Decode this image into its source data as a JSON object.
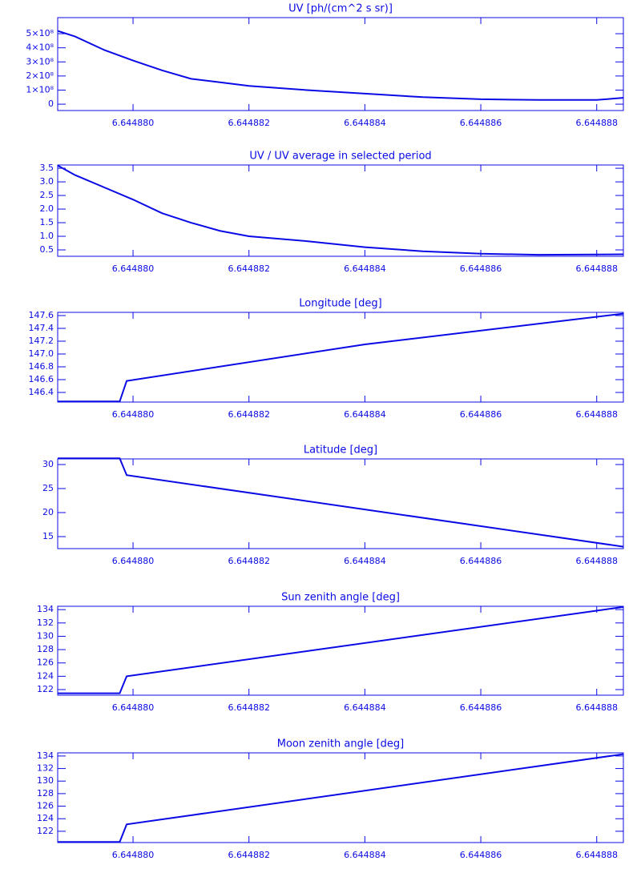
{
  "chart_data": [
    {
      "type": "line",
      "title": "UV [ph/(cm^2 s sr)]",
      "color": "#0a0ae6",
      "x": [
        6.6448787,
        6.644879,
        6.6448795,
        6.64488,
        6.6448805,
        6.644881,
        6.6448815,
        6.644882,
        6.644883,
        6.644884,
        6.644885,
        6.644886,
        6.644887,
        6.644888,
        6.64488846
      ],
      "values": [
        520000000,
        480000000,
        385000000,
        310000000,
        240000000,
        180000000,
        155000000,
        130000000,
        100000000,
        75000000,
        50000000,
        35000000,
        30000000,
        30000000,
        45000000
      ],
      "xlim": [
        6.6448787,
        6.64488846
      ],
      "xticks": [
        {
          "value": 6.64488,
          "label": "6.644880"
        },
        {
          "value": 6.644882,
          "label": "6.644882"
        },
        {
          "value": 6.644884,
          "label": "6.644884"
        },
        {
          "value": 6.644886,
          "label": "6.644886"
        },
        {
          "value": 6.644888,
          "label": "6.644888"
        }
      ],
      "ylim": [
        -45000000,
        614000000
      ],
      "yticks": [
        0,
        {
          "value": 100000000,
          "label": "1×10⁸"
        },
        {
          "value": 200000000,
          "label": "2×10⁸"
        },
        {
          "value": 300000000,
          "label": "3×10⁸"
        },
        {
          "value": 400000000,
          "label": "4×10⁸"
        },
        {
          "value": 500000000,
          "label": "5×10⁸"
        }
      ]
    },
    {
      "type": "line",
      "title": "UV / UV average in selected period",
      "color": "#0a0ae6",
      "x": [
        6.6448787,
        6.644879,
        6.6448795,
        6.64488,
        6.6448805,
        6.644881,
        6.6448815,
        6.644882,
        6.644883,
        6.644884,
        6.644885,
        6.644886,
        6.644887,
        6.644888,
        6.64488846
      ],
      "values": [
        3.6,
        3.25,
        2.8,
        2.35,
        1.85,
        1.5,
        1.2,
        1.0,
        0.82,
        0.6,
        0.45,
        0.36,
        0.32,
        0.33,
        0.34
      ],
      "xlim": [
        6.6448787,
        6.64488846
      ],
      "xticks": [
        {
          "value": 6.64488,
          "label": "6.644880"
        },
        {
          "value": 6.644882,
          "label": "6.644882"
        },
        {
          "value": 6.644884,
          "label": "6.644884"
        },
        {
          "value": 6.644886,
          "label": "6.644886"
        },
        {
          "value": 6.644888,
          "label": "6.644888"
        }
      ],
      "ylim": [
        0.265,
        3.62
      ],
      "yticks": [
        0.5,
        {
          "value": 1,
          "label": "1.0"
        },
        1.5,
        {
          "value": 2,
          "label": "2.0"
        },
        2.5,
        {
          "value": 3,
          "label": "3.0"
        },
        3.5
      ]
    },
    {
      "type": "line",
      "title": "Longitude [deg]",
      "color": "#0a0ae6",
      "x": [
        6.6448787,
        6.64487977,
        6.64487989,
        6.644884,
        6.64488846
      ],
      "values": [
        146.26,
        146.26,
        146.58,
        147.15,
        147.63
      ],
      "xlim": [
        6.6448787,
        6.64488846
      ],
      "xticks": [
        {
          "value": 6.64488,
          "label": "6.644880"
        },
        {
          "value": 6.644882,
          "label": "6.644882"
        },
        {
          "value": 6.644884,
          "label": "6.644884"
        },
        {
          "value": 6.644886,
          "label": "6.644886"
        },
        {
          "value": 6.644888,
          "label": "6.644888"
        }
      ],
      "ylim": [
        146.25,
        147.65
      ],
      "yticks": [
        146.4,
        146.6,
        146.8,
        {
          "value": 147,
          "label": "147.0"
        },
        147.2,
        147.4,
        147.6
      ]
    },
    {
      "type": "line",
      "title": "Latitude [deg]",
      "color": "#0a0ae6",
      "x": [
        6.6448787,
        6.64487977,
        6.64487989,
        6.644884,
        6.64488846
      ],
      "values": [
        31.3,
        31.3,
        27.8,
        20.65,
        12.9
      ],
      "xlim": [
        6.6448787,
        6.64488846
      ],
      "xticks": [
        {
          "value": 6.64488,
          "label": "6.644880"
        },
        {
          "value": 6.644882,
          "label": "6.644882"
        },
        {
          "value": 6.644884,
          "label": "6.644884"
        },
        {
          "value": 6.644886,
          "label": "6.644886"
        },
        {
          "value": 6.644888,
          "label": "6.644888"
        }
      ],
      "ylim": [
        12.5,
        31.17
      ],
      "yticks": [
        15,
        20,
        25,
        30
      ]
    },
    {
      "type": "line",
      "title": "Sun zenith angle [deg]",
      "color": "#0a0ae6",
      "x": [
        6.6448787,
        6.64487977,
        6.64487989,
        6.64488846
      ],
      "values": [
        121.45,
        121.45,
        124.0,
        134.4
      ],
      "xlim": [
        6.6448787,
        6.64488846
      ],
      "xticks": [
        {
          "value": 6.64488,
          "label": "6.644880"
        },
        {
          "value": 6.644882,
          "label": "6.644882"
        },
        {
          "value": 6.644884,
          "label": "6.644884"
        },
        {
          "value": 6.644886,
          "label": "6.644886"
        },
        {
          "value": 6.644888,
          "label": "6.644888"
        }
      ],
      "ylim": [
        121.16,
        134.5
      ],
      "yticks": [
        122,
        124,
        126,
        128,
        130,
        132,
        134
      ]
    },
    {
      "type": "line",
      "title": "Moon zenith angle [deg]",
      "color": "#0a0ae6",
      "x": [
        6.6448787,
        6.64487977,
        6.64487989,
        6.64488846
      ],
      "values": [
        120.3,
        120.3,
        123.1,
        134.3
      ],
      "xlim": [
        6.6448787,
        6.64488846
      ],
      "xticks": [
        {
          "value": 6.64488,
          "label": "6.644880"
        },
        {
          "value": 6.644882,
          "label": "6.644882"
        },
        {
          "value": 6.644884,
          "label": "6.644884"
        },
        {
          "value": 6.644886,
          "label": "6.644886"
        },
        {
          "value": 6.644888,
          "label": "6.644888"
        }
      ],
      "ylim": [
        120.2,
        134.5
      ],
      "yticks": [
        122,
        124,
        126,
        128,
        130,
        132,
        134
      ]
    }
  ]
}
